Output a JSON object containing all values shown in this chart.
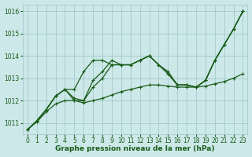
{
  "xlabel": "Graphe pression niveau de la mer (hPa)",
  "x": [
    0,
    1,
    2,
    3,
    4,
    5,
    6,
    7,
    8,
    9,
    10,
    11,
    12,
    13,
    14,
    15,
    16,
    17,
    18,
    19,
    20,
    21,
    22,
    23
  ],
  "line1": [
    1010.7,
    1011.1,
    1011.6,
    1012.2,
    1012.5,
    1012.5,
    1013.3,
    1013.8,
    1013.8,
    1013.6,
    1013.6,
    1013.6,
    1013.8,
    1014.0,
    1013.6,
    1013.2,
    1012.7,
    1012.7,
    1012.6,
    1012.9,
    1013.8,
    1014.5,
    1015.2,
    1016.0
  ],
  "line2": [
    1010.7,
    1011.1,
    1011.6,
    1012.2,
    1012.5,
    1012.1,
    1012.0,
    1012.6,
    1013.0,
    1013.6,
    1013.6,
    1013.6,
    1013.8,
    1014.0,
    1013.6,
    1013.2,
    1012.7,
    1012.7,
    1012.6,
    1012.9,
    1013.8,
    1014.5,
    1015.2,
    1016.0
  ],
  "line3": [
    1010.7,
    1011.1,
    1011.6,
    1012.2,
    1012.5,
    1012.0,
    1012.0,
    1012.9,
    1013.3,
    1013.8,
    1013.6,
    1013.6,
    1013.8,
    1014.0,
    1013.6,
    1013.3,
    1012.7,
    1012.7,
    1012.6,
    1012.9,
    1013.8,
    1014.5,
    1015.2,
    1016.0
  ],
  "line4": [
    1010.7,
    1011.05,
    1011.5,
    1011.85,
    1012.0,
    1012.0,
    1011.9,
    1012.0,
    1012.1,
    1012.25,
    1012.4,
    1012.5,
    1012.6,
    1012.7,
    1012.7,
    1012.65,
    1012.6,
    1012.6,
    1012.6,
    1012.65,
    1012.75,
    1012.85,
    1013.0,
    1013.2
  ],
  "bg_color": "#cce8e8",
  "line_color": "#1a5c1a",
  "grid_color": "#9dc4c4",
  "text_color": "#1a5c1a",
  "ylim": [
    1010.5,
    1016.3
  ],
  "yticks": [
    1011,
    1012,
    1013,
    1014,
    1015,
    1016
  ],
  "xticks": [
    0,
    1,
    2,
    3,
    4,
    5,
    6,
    7,
    8,
    9,
    10,
    11,
    12,
    13,
    14,
    15,
    16,
    17,
    18,
    19,
    20,
    21,
    22,
    23
  ],
  "xlabel_fontsize": 6.5,
  "tick_fontsize": 5.5,
  "line_width": 0.9,
  "marker_size": 2.5,
  "figsize": [
    3.2,
    2.0
  ],
  "dpi": 100
}
